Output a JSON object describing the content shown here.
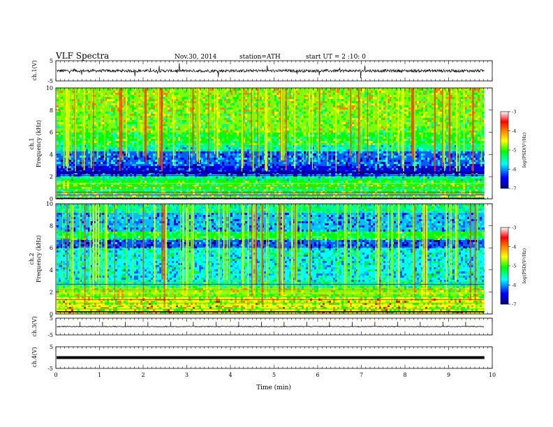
{
  "header": {
    "title": "VLF Spectra",
    "date": "Nov.30, 2014",
    "station": "station=ATH",
    "start": "start UT =  2 :10: 0"
  },
  "chart_data": {
    "type": "heatmap",
    "x_axis": {
      "label": "Time (min)",
      "range": [
        0,
        10
      ],
      "ticks": [
        "0",
        "1",
        "2",
        "3",
        "4",
        "5",
        "6",
        "7",
        "8",
        "9",
        "10"
      ]
    },
    "panels": [
      {
        "id": "ch1-waveform",
        "type": "line",
        "ylabel": "ch.1(V)",
        "ylim": [
          -5,
          5
        ],
        "yticks": [
          "5",
          "-5"
        ],
        "baseline": 0,
        "data_end_min": 9.82
      },
      {
        "id": "ch1-spectrogram",
        "type": "heatmap",
        "ylabel": "ch.1\nFrequency (kHz)",
        "ylim": [
          0,
          10
        ],
        "yticks": [
          "0",
          "2",
          "4",
          "6",
          "8",
          "10"
        ],
        "data_end_min": 9.82
      },
      {
        "id": "ch2-spectrogram",
        "type": "heatmap",
        "ylabel": "ch.2\nFrequency (kHz)",
        "ylim": [
          0,
          10
        ],
        "yticks": [
          "0",
          "2",
          "4",
          "6",
          "8",
          "10"
        ],
        "data_end_min": 9.82
      },
      {
        "id": "ch3-waveform",
        "type": "line",
        "ylabel": "ch.3(V)",
        "ylim": [
          -5,
          5
        ],
        "yticks": [
          "5",
          "-5"
        ],
        "baseline": 0,
        "data_end_min": 9.82
      },
      {
        "id": "ch4-waveform",
        "type": "line",
        "ylabel": "ch.4(V)",
        "ylim": [
          -5,
          5
        ],
        "yticks": [
          "5",
          "-5"
        ],
        "baseline": 0,
        "data_end_min": 9.82
      }
    ],
    "colorbar": {
      "label": "log(PSD(V²/Hz)",
      "range": [
        -7,
        -3
      ],
      "ticks": [
        "-3",
        "-4",
        "-5",
        "-6",
        "-7"
      ],
      "colors": [
        "#000080",
        "#0000ff",
        "#00ffff",
        "#00ff00",
        "#ffff00",
        "#ff8000",
        "#ff0000",
        "#ffffff"
      ]
    }
  }
}
